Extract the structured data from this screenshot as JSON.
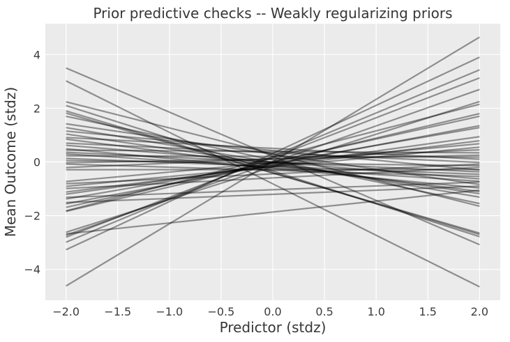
{
  "figure": {
    "kind": "matplotlib-style static plot",
    "background_color": "#ffffff"
  },
  "chart_data": {
    "type": "line",
    "title": "Prior predictive checks -- Weakly regularizing priors",
    "xlabel": "Predictor (stdz)",
    "ylabel": "Mean Outcome (stdz)",
    "xlim": [
      -2.2,
      2.2
    ],
    "ylim": [
      -5.15,
      5.15
    ],
    "x_ticks": [
      -2.0,
      -1.5,
      -1.0,
      -0.5,
      0.0,
      0.5,
      1.0,
      1.5,
      2.0
    ],
    "x_tick_labels": [
      "−2.0",
      "−1.5",
      "−1.0",
      "−0.5",
      "0.0",
      "0.5",
      "1.0",
      "1.5",
      "2.0"
    ],
    "y_ticks": [
      -4,
      -2,
      0,
      2,
      4
    ],
    "y_tick_labels": [
      "−4",
      "−2",
      "0",
      "2",
      "4"
    ],
    "grid": true,
    "legend_position": "none",
    "x_range": [
      -2,
      2
    ],
    "lines_format": "each entry is [y at x=-2, y at x=+2]; straight prior predictive regression lines y = a + b*x sampled from weakly regularizing priors",
    "lines": [
      [
        3.5,
        -3.08
      ],
      [
        3.02,
        -4.65
      ],
      [
        2.24,
        -1.65
      ],
      [
        2.1,
        -2.78
      ],
      [
        1.9,
        -2.7
      ],
      [
        1.82,
        -2.65
      ],
      [
        1.7,
        -1.55
      ],
      [
        1.42,
        -0.84
      ],
      [
        1.28,
        -1.31
      ],
      [
        1.15,
        -0.3
      ],
      [
        1.04,
        -1.18
      ],
      [
        0.91,
        0.1
      ],
      [
        0.85,
        -1.1
      ],
      [
        0.7,
        -0.02
      ],
      [
        0.62,
        -0.63
      ],
      [
        0.49,
        -0.97
      ],
      [
        0.44,
        0.34
      ],
      [
        0.36,
        -0.37
      ],
      [
        0.3,
        -0.72
      ],
      [
        0.23,
        0.18
      ],
      [
        0.13,
        -0.46
      ],
      [
        0.05,
        -0.14
      ],
      [
        -0.03,
        0.25
      ],
      [
        -0.08,
        -0.54
      ],
      [
        -0.21,
        0.45
      ],
      [
        -0.29,
        -0.28
      ],
      [
        -0.73,
        0.68
      ],
      [
        -0.81,
        -0.08
      ],
      [
        -0.91,
        0.55
      ],
      [
        -0.99,
        -0.2
      ],
      [
        -1.12,
        0.79
      ],
      [
        -1.2,
        0.94
      ],
      [
        -1.32,
        -0.75
      ],
      [
        -1.38,
        1.28
      ],
      [
        -1.51,
        -0.9
      ],
      [
        -1.56,
        1.35
      ],
      [
        -1.69,
        1.7
      ],
      [
        -1.82,
        2.15
      ],
      [
        -1.84,
        1.8
      ],
      [
        -2.62,
        2.25
      ],
      [
        -2.68,
        -1.05
      ],
      [
        -2.73,
        2.7
      ],
      [
        -2.8,
        3.13
      ],
      [
        -2.99,
        3.43
      ],
      [
        -3.27,
        3.9
      ],
      [
        -4.62,
        4.65
      ]
    ],
    "style": {
      "plot_background": "#ebebeb",
      "grid_color": "#ffffff",
      "grid_width": 1.2,
      "line_color": "#000000",
      "line_opacity": 0.4,
      "line_width": 2.2,
      "text_color": "#363636",
      "tick_text_color": "#3c3c3c"
    }
  }
}
